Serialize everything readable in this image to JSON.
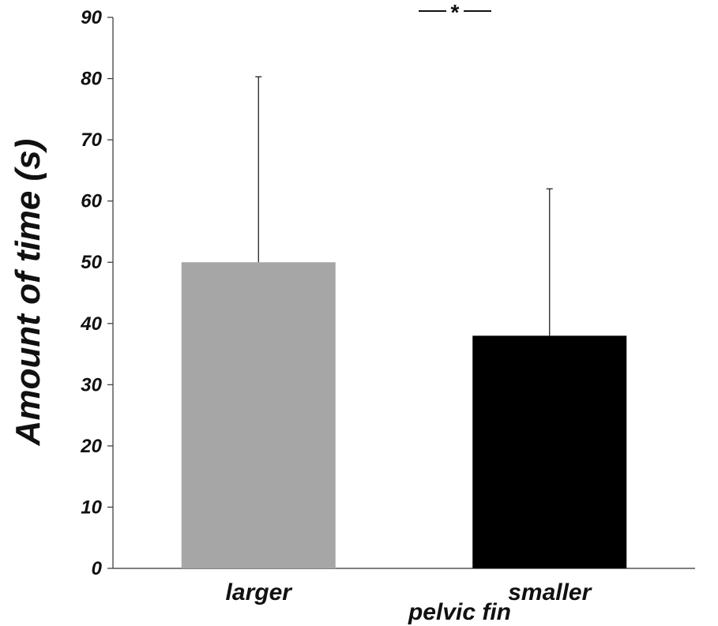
{
  "chart_data": {
    "type": "bar",
    "categories": [
      "larger",
      "smaller"
    ],
    "values": [
      50,
      38
    ],
    "error_upper": [
      80.3,
      62
    ],
    "colors": [
      "#a6a6a6",
      "#000000"
    ],
    "xlabel": "pelvic fin",
    "ylabel": "Amount of time (s)",
    "ylim": [
      0,
      90
    ],
    "yticks": [
      0,
      10,
      20,
      30,
      40,
      50,
      60,
      70,
      80,
      90
    ],
    "grid": false,
    "significance": "*"
  }
}
